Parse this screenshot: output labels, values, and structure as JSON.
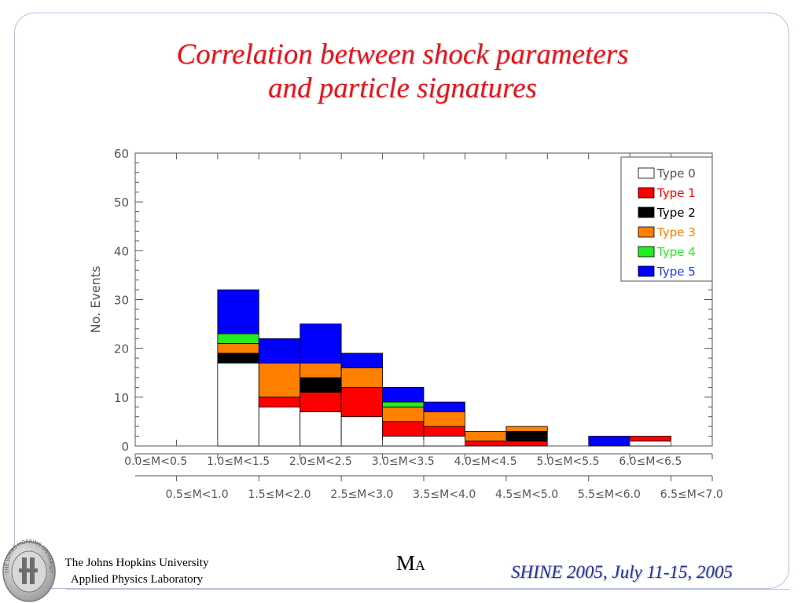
{
  "slide": {
    "title_line1": "Correlation between shock parameters",
    "title_line2": "and particle signatures",
    "institution_line1": "The Johns Hopkins University",
    "institution_line2": "Applied Physics Laboratory",
    "variable_main": "M",
    "variable_sub": "A",
    "conference": "SHINE 2005, July 11-15, 2005",
    "logo_text": "THE JOHNS HOPKINS UNIVERSITY"
  },
  "chart_data": {
    "type": "bar",
    "stacked": true,
    "ylabel": "No. Events",
    "ylim": [
      0,
      60
    ],
    "yticks": [
      0,
      10,
      20,
      30,
      40,
      50,
      60
    ],
    "categories": [
      "0.0≤M<0.5",
      "0.5≤M<1.0",
      "1.0≤M<1.5",
      "1.5≤M<2.0",
      "2.0≤M<2.5",
      "2.5≤M<3.0",
      "3.0≤M<3.5",
      "3.5≤M<4.0",
      "4.0≤M<4.5",
      "4.5≤M<5.0",
      "5.0≤M<5.5",
      "5.5≤M<6.0",
      "6.0≤M<6.5",
      "6.5≤M<7.0"
    ],
    "series": [
      {
        "name": "Type 0",
        "color": "#ffffff",
        "label_color": "#555555",
        "values": [
          0,
          0,
          17,
          8,
          7,
          6,
          2,
          2,
          0,
          0,
          0,
          0,
          1,
          0
        ]
      },
      {
        "name": "Type 1",
        "color": "#ff0000",
        "label_color": "#ff0000",
        "values": [
          0,
          0,
          0,
          2,
          4,
          6,
          3,
          2,
          1,
          1,
          0,
          0,
          1,
          0
        ]
      },
      {
        "name": "Type 2",
        "color": "#000000",
        "label_color": "#000000",
        "values": [
          0,
          0,
          2,
          0,
          3,
          0,
          0,
          0,
          0,
          2,
          0,
          0,
          0,
          0
        ]
      },
      {
        "name": "Type 3",
        "color": "#ff7f00",
        "label_color": "#ff7f00",
        "values": [
          0,
          0,
          2,
          7,
          3,
          4,
          3,
          3,
          2,
          1,
          0,
          0,
          0,
          0
        ]
      },
      {
        "name": "Type 4",
        "color": "#22ee22",
        "label_color": "#22ee22",
        "values": [
          0,
          0,
          2,
          0,
          0,
          0,
          1,
          0,
          0,
          0,
          0,
          0,
          0,
          0
        ]
      },
      {
        "name": "Type 5",
        "color": "#0000ff",
        "label_color": "#2040ff",
        "values": [
          0,
          0,
          9,
          5,
          8,
          3,
          3,
          2,
          0,
          0,
          0,
          2,
          0,
          0
        ]
      }
    ],
    "legend_position": "top-right",
    "grid": false
  }
}
